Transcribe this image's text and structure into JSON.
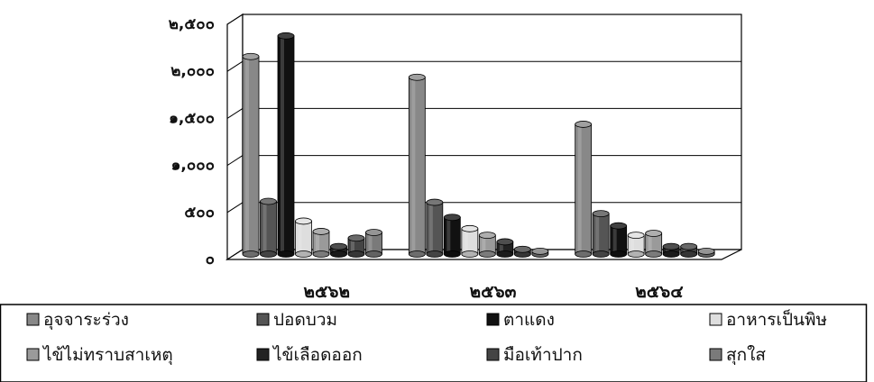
{
  "chart_data": {
    "type": "bar",
    "subtype": "3d-clustered",
    "categories": [
      "๒๕๖๒",
      "๒๕๖๓",
      "๒๕๖๔"
    ],
    "ylim": [
      0,
      2500
    ],
    "y_ticks": [
      {
        "value": 0,
        "label": "๐"
      },
      {
        "value": 500,
        "label": "๕๐๐"
      },
      {
        "value": 1000,
        "label": "๑,๐๐๐"
      },
      {
        "value": 1500,
        "label": "๑,๕๐๐"
      },
      {
        "value": 2000,
        "label": "๒,๐๐๐"
      },
      {
        "value": 2500,
        "label": "๒,๕๐๐"
      }
    ],
    "grid": true,
    "legend_position": "bottom",
    "series": [
      {
        "name": "อุจจาระร่วง",
        "color": "#888888",
        "values": [
          2100,
          1880,
          1380
        ]
      },
      {
        "name": "ปอดบวม",
        "color": "#555555",
        "values": [
          560,
          550,
          430
        ]
      },
      {
        "name": "ตาแดง",
        "color": "#111111",
        "values": [
          2320,
          390,
          300
        ]
      },
      {
        "name": "อาหารเป็นพิษ",
        "color": "#dedede",
        "values": [
          350,
          270,
          200
        ]
      },
      {
        "name": "ไข้ไม่ทราบสาเหตุ",
        "color": "#9a9a9a",
        "values": [
          240,
          200,
          220
        ]
      },
      {
        "name": "ไข้เลือดออก",
        "color": "#222222",
        "values": [
          80,
          130,
          80
        ]
      },
      {
        "name": "มือเท้าปาก",
        "color": "#444444",
        "values": [
          170,
          50,
          80
        ]
      },
      {
        "name": "สุกใส",
        "color": "#7a7a7a",
        "values": [
          230,
          30,
          30
        ]
      }
    ]
  }
}
